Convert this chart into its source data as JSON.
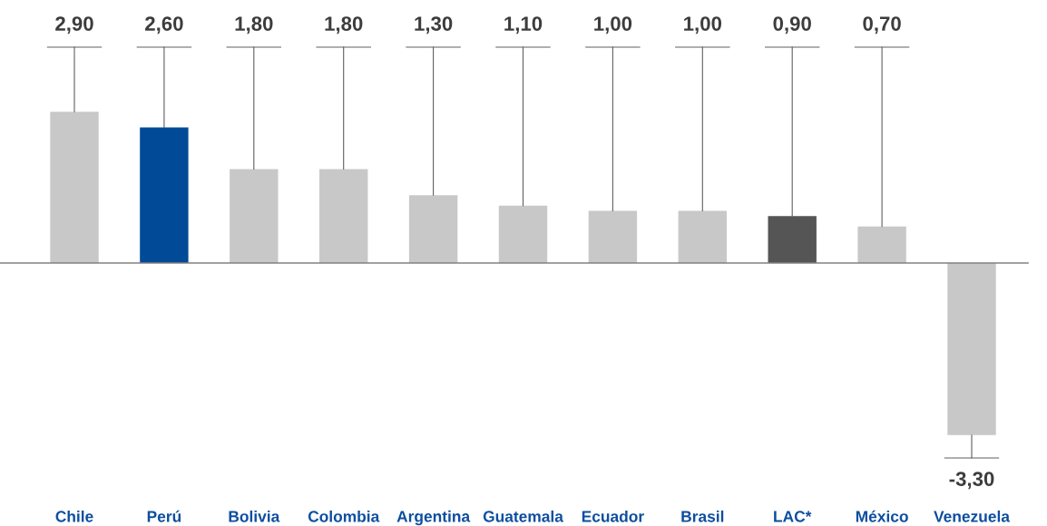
{
  "chart_data": {
    "type": "bar",
    "categories": [
      "Chile",
      "Perú",
      "Bolivia",
      "Colombia",
      "Argentina",
      "Guatemala",
      "Ecuador",
      "Brasil",
      "LAC*",
      "México",
      "Venezuela"
    ],
    "values": [
      2.9,
      2.6,
      1.8,
      1.8,
      1.3,
      1.1,
      1.0,
      1.0,
      0.9,
      0.7,
      -3.3
    ],
    "colors": [
      "#c8c8c8",
      "#004a98",
      "#c8c8c8",
      "#c8c8c8",
      "#c8c8c8",
      "#c8c8c8",
      "#c8c8c8",
      "#c8c8c8",
      "#555555",
      "#c8c8c8",
      "#c8c8c8"
    ],
    "value_labels": [
      "2,90",
      "2,60",
      "1,80",
      "1,80",
      "1,30",
      "1,10",
      "1,00",
      "1,00",
      "0,90",
      "0,70",
      "-3,30"
    ]
  }
}
